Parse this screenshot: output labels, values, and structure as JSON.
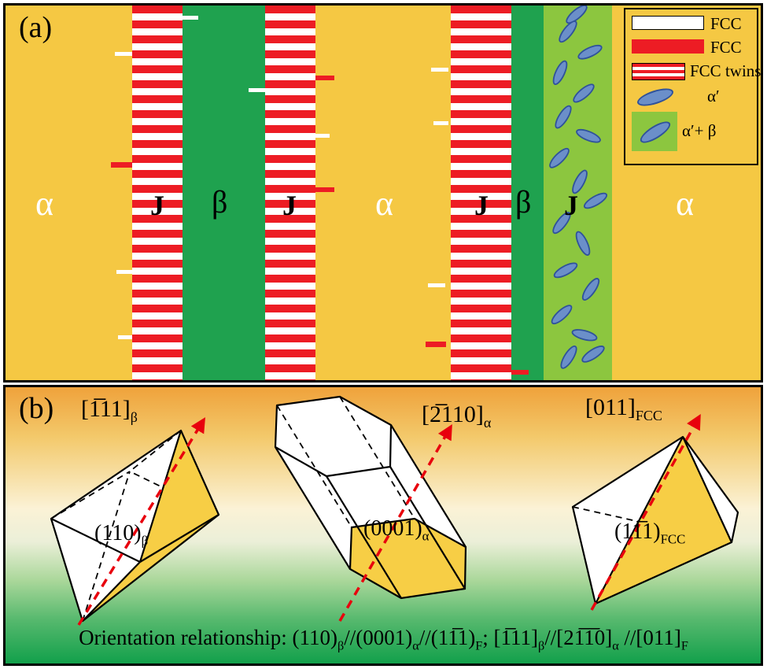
{
  "panel_a": {
    "label": "(a)",
    "regions": {
      "alpha_left": "α",
      "j1": "J",
      "beta1": "β",
      "j2": "J",
      "alpha_mid": "α",
      "j3": "J",
      "beta2": "β",
      "j4": "J",
      "alpha_right": "α"
    },
    "legend": {
      "items": [
        {
          "label": "FCC",
          "swatch": "white-bar"
        },
        {
          "label": "FCC",
          "swatch": "red-bar"
        },
        {
          "label": "FCC twins",
          "swatch": "red-white-striped-bar"
        },
        {
          "label": "α′",
          "swatch": "blue-ellipse"
        },
        {
          "label": "α′+ β",
          "swatch": "green-box-with-blue-ellipse"
        }
      ]
    },
    "colors": {
      "matrix_yellow": "#F5C843",
      "beta_green": "#1FA24F",
      "stripe_red": "#ED1C24",
      "mixed_light_green": "#8CC63F",
      "martensite_blue": "#6B8FC9"
    }
  },
  "panel_b": {
    "label": "(b)",
    "labels": {
      "beta_direction": [
        {
          "t": "[1̅11]"
        },
        {
          "t": "β",
          "sub": true
        }
      ],
      "beta_plane": [
        {
          "t": "(110)"
        },
        {
          "t": "β",
          "sub": true
        }
      ],
      "alpha_direction": [
        {
          "t": "[2̅110]"
        },
        {
          "t": "α",
          "sub": true
        }
      ],
      "alpha_plane": [
        {
          "t": "(0001)"
        },
        {
          "t": "α",
          "sub": true
        }
      ],
      "fcc_direction": [
        {
          "t": "[011]"
        },
        {
          "t": "FCC",
          "sub": true
        }
      ],
      "fcc_plane": [
        {
          "t": "(11̅1)"
        },
        {
          "t": "FCC",
          "sub": true
        }
      ]
    },
    "orientation_relationship": [
      {
        "t": "Orientation relationship: (110)"
      },
      {
        "t": "β",
        "sub": true
      },
      {
        "t": "//(0001)"
      },
      {
        "t": "α",
        "sub": true
      },
      {
        "t": "//(11̅1)"
      },
      {
        "t": "F",
        "sub": true
      },
      {
        "t": ";  [1̅11]"
      },
      {
        "t": "β",
        "sub": true
      },
      {
        "t": "//[21̅1̅0]"
      },
      {
        "t": "α",
        "sub": true
      },
      {
        "t": " //[011]"
      },
      {
        "t": "F",
        "sub": true
      }
    ],
    "colors": {
      "arrow_red": "#E8000D",
      "highlight_yellow": "#F7CE45"
    }
  }
}
